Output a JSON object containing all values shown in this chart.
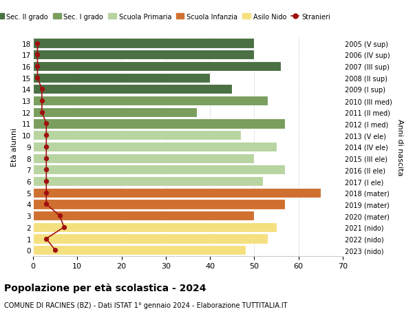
{
  "ages": [
    0,
    1,
    2,
    3,
    4,
    5,
    6,
    7,
    8,
    9,
    10,
    11,
    12,
    13,
    14,
    15,
    16,
    17,
    18
  ],
  "years": [
    "2023 (nido)",
    "2022 (nido)",
    "2021 (nido)",
    "2020 (mater)",
    "2019 (mater)",
    "2018 (mater)",
    "2017 (I ele)",
    "2016 (II ele)",
    "2015 (III ele)",
    "2014 (IV ele)",
    "2013 (V ele)",
    "2012 (I med)",
    "2011 (II med)",
    "2010 (III med)",
    "2009 (I sup)",
    "2008 (II sup)",
    "2007 (III sup)",
    "2006 (IV sup)",
    "2005 (V sup)"
  ],
  "bar_values": [
    48,
    53,
    55,
    50,
    57,
    65,
    52,
    57,
    50,
    55,
    47,
    57,
    37,
    53,
    45,
    40,
    56,
    50,
    50
  ],
  "bar_colors": [
    "#f5e080",
    "#f5e080",
    "#f5e080",
    "#d07030",
    "#d07030",
    "#d07030",
    "#b8d4a0",
    "#b8d4a0",
    "#b8d4a0",
    "#b8d4a0",
    "#b8d4a0",
    "#7a9e5e",
    "#7a9e5e",
    "#7a9e5e",
    "#4a7043",
    "#4a7043",
    "#4a7043",
    "#4a7043",
    "#4a7043"
  ],
  "stranieri_values": [
    5,
    3,
    7,
    6,
    3,
    3,
    3,
    3,
    3,
    3,
    3,
    3,
    2,
    2,
    2,
    1,
    1,
    1,
    1
  ],
  "legend_labels": [
    "Sec. II grado",
    "Sec. I grado",
    "Scuola Primaria",
    "Scuola Infanzia",
    "Asilo Nido",
    "Stranieri"
  ],
  "legend_colors": [
    "#4a7043",
    "#7a9e5e",
    "#b8d4a0",
    "#d07030",
    "#f5e080",
    "#a01010"
  ],
  "title": "Popolazione per età scolastica - 2024",
  "subtitle": "COMUNE DI RACINES (BZ) - Dati ISTAT 1° gennaio 2024 - Elaborazione TUTTITALIA.IT",
  "ylabel": "Età alunni",
  "right_ylabel": "Anni di nascita",
  "xlim": [
    0,
    70
  ],
  "xticks": [
    0,
    10,
    20,
    30,
    40,
    50,
    60,
    70
  ],
  "bg_color": "#ffffff",
  "grid_color": "#cccccc"
}
